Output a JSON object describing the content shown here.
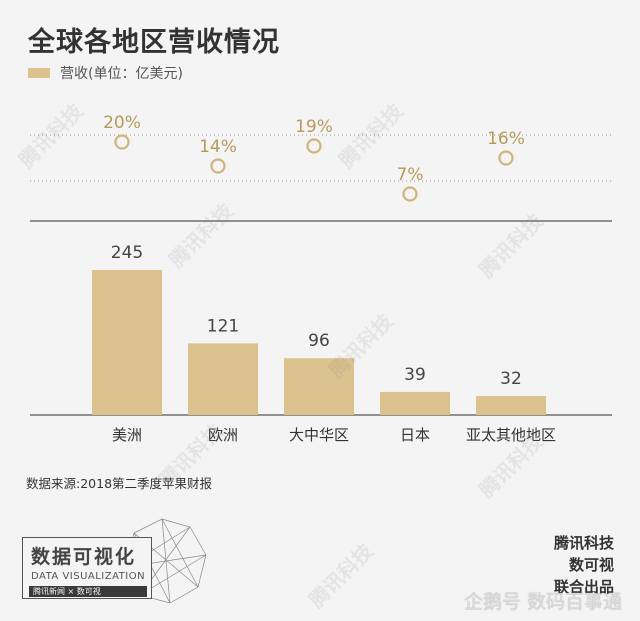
{
  "title": "全球各地区营收情况",
  "legend_label": "营收(单位：亿美元)",
  "source": "数据来源:2018第二季度苹果财报",
  "logo": {
    "main": "数据可视化",
    "sub": "DATA VISUALIZATION",
    "strip": "腾讯新闻 × 数可视"
  },
  "credits": [
    "腾讯科技",
    "数可视",
    "联合出品"
  ],
  "watermark": "企鹅号 数码百事通",
  "bg_watermark": "腾讯科技",
  "colors": {
    "bar": "#dcc28f",
    "text_gold": "#b59a5c",
    "circle": "#cfb57c",
    "background": "#f4f4f4"
  },
  "chart_data": {
    "type": "bar",
    "categories": [
      "美洲",
      "欧洲",
      "大中华区",
      "日本",
      "亚太其他地区"
    ],
    "values": [
      245,
      121,
      96,
      39,
      32
    ],
    "shares": [
      20,
      14,
      19,
      7,
      16
    ],
    "share_labels": [
      "20%",
      "14%",
      "19%",
      "7%",
      "16%"
    ],
    "title": "全球各地区营收情况",
    "legend": [
      "营收(单位：亿美元)"
    ]
  }
}
